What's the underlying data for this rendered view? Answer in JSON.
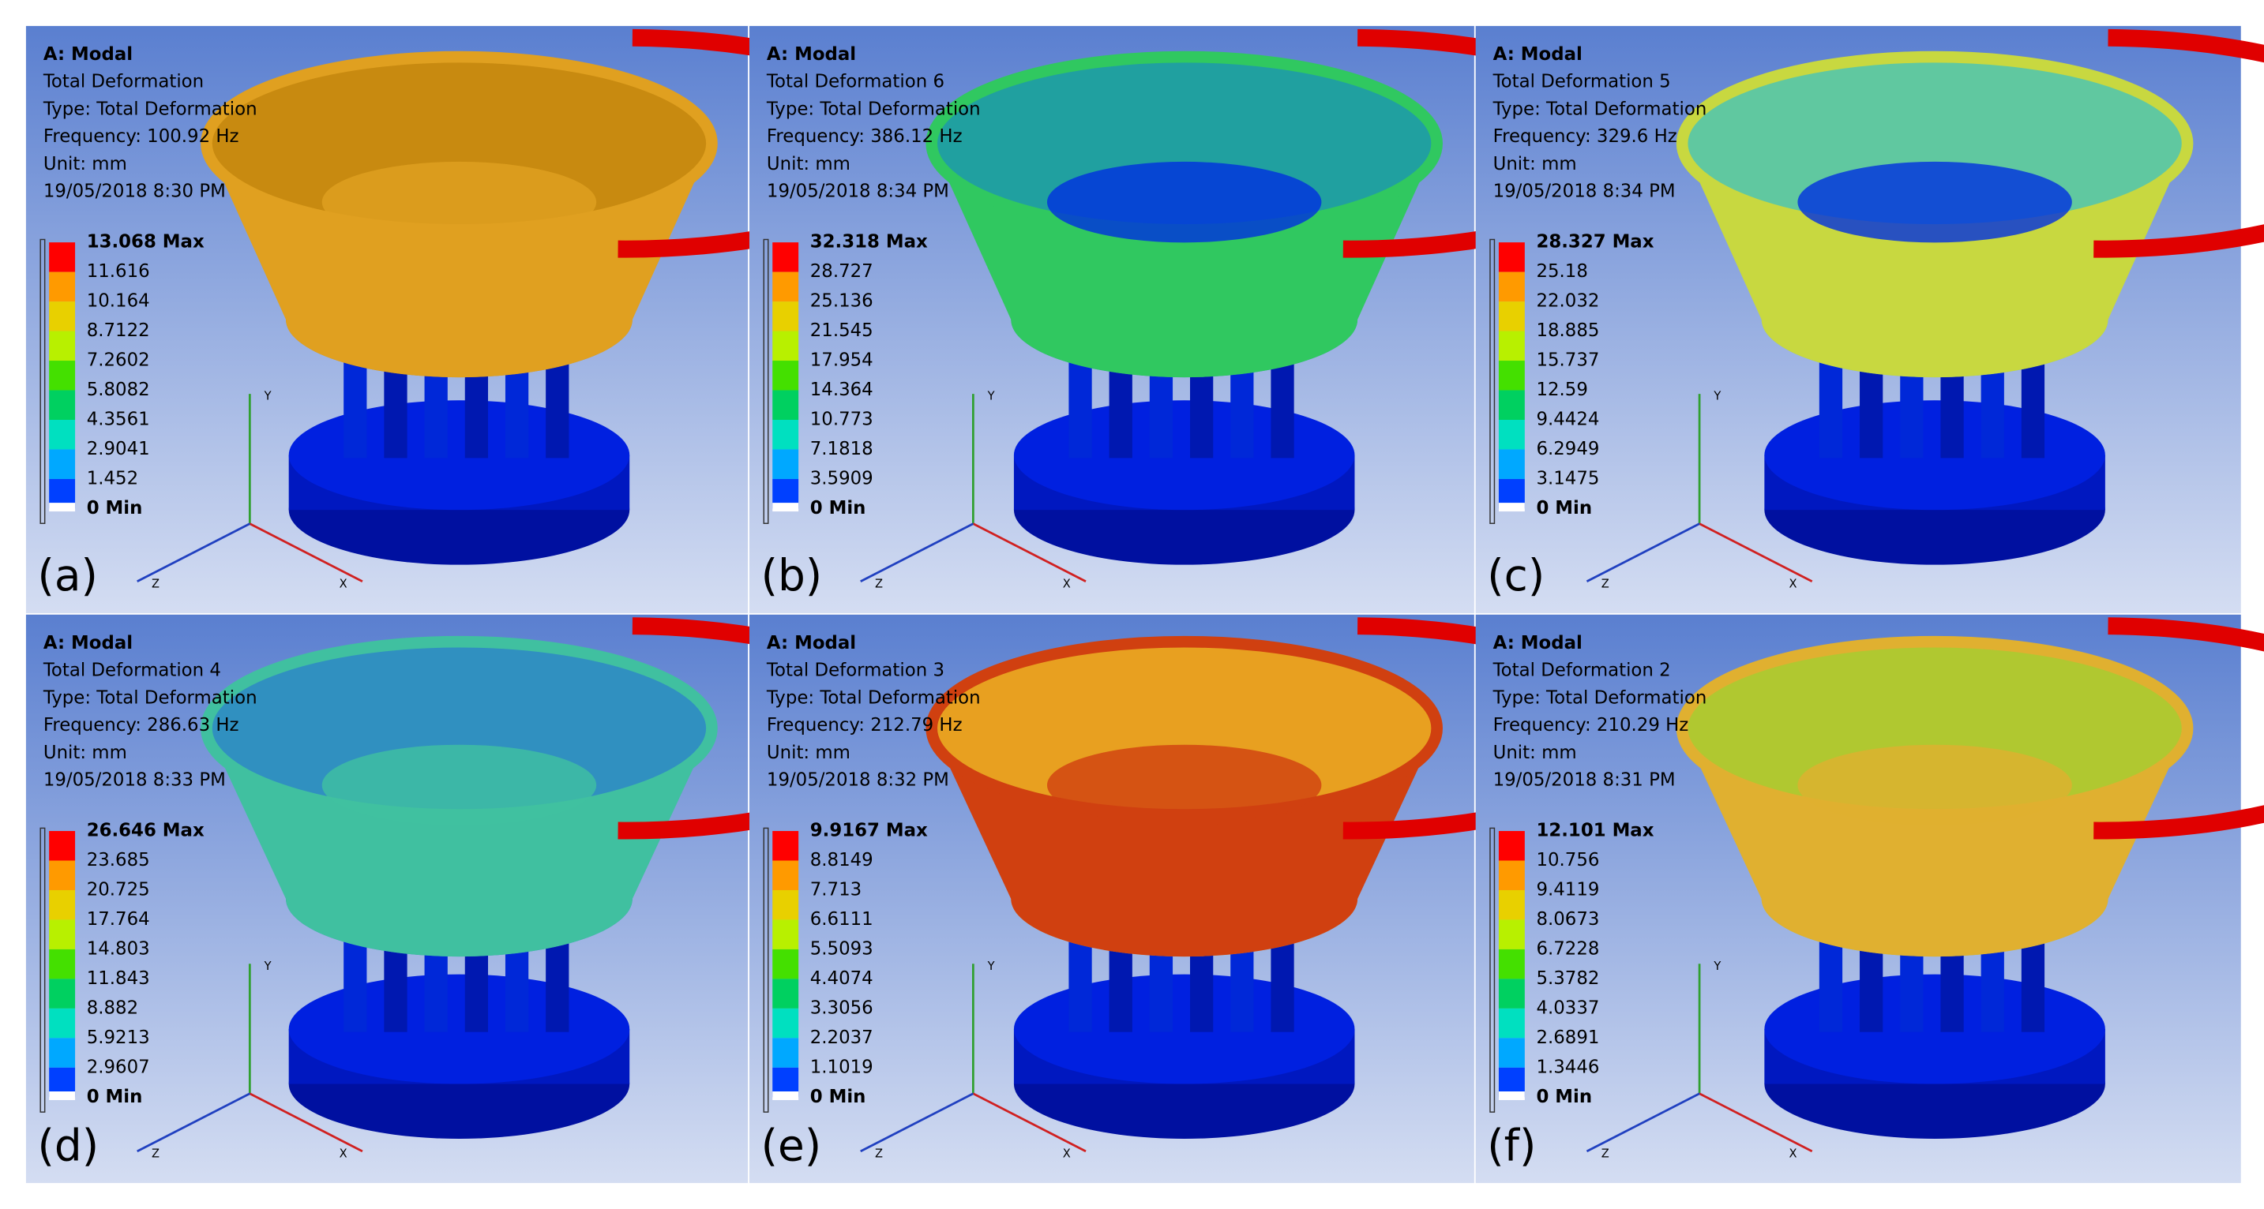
{
  "panels": [
    {
      "label": "(a)",
      "info": [
        "A: Modal",
        "Total Deformation",
        "Type: Total Deformation",
        "Frequency: 100.92 Hz",
        "Unit: mm",
        "19/05/2018 8:30 PM"
      ],
      "legend": [
        "13.068 Max",
        "11.616",
        "10.164",
        "8.7122",
        "7.2602",
        "5.8082",
        "4.3561",
        "2.9041",
        "1.452",
        "0 Min"
      ]
    },
    {
      "label": "(b)",
      "info": [
        "A: Modal",
        "Total Deformation 6",
        "Type: Total Deformation",
        "Frequency: 386.12 Hz",
        "Unit: mm",
        "19/05/2018 8:34 PM"
      ],
      "legend": [
        "32.318 Max",
        "28.727",
        "25.136",
        "21.545",
        "17.954",
        "14.364",
        "10.773",
        "7.1818",
        "3.5909",
        "0 Min"
      ]
    },
    {
      "label": "(c)",
      "info": [
        "A: Modal",
        "Total Deformation 5",
        "Type: Total Deformation",
        "Frequency: 329.6 Hz",
        "Unit: mm",
        "19/05/2018 8:34 PM"
      ],
      "legend": [
        "28.327 Max",
        "25.18",
        "22.032",
        "18.885",
        "15.737",
        "12.59",
        "9.4424",
        "6.2949",
        "3.1475",
        "0 Min"
      ]
    },
    {
      "label": "(d)",
      "info": [
        "A: Modal",
        "Total Deformation 4",
        "Type: Total Deformation",
        "Frequency: 286.63 Hz",
        "Unit: mm",
        "19/05/2018 8:33 PM"
      ],
      "legend": [
        "26.646 Max",
        "23.685",
        "20.725",
        "17.764",
        "14.803",
        "11.843",
        "8.882",
        "5.9213",
        "2.9607",
        "0 Min"
      ]
    },
    {
      "label": "(e)",
      "info": [
        "A: Modal",
        "Total Deformation 3",
        "Type: Total Deformation",
        "Frequency: 212.79 Hz",
        "Unit: mm",
        "19/05/2018 8:32 PM"
      ],
      "legend": [
        "9.9167 Max",
        "8.8149",
        "7.713",
        "6.6111",
        "5.5093",
        "4.4074",
        "3.3056",
        "2.2037",
        "1.1019",
        "0 Min"
      ]
    },
    {
      "label": "(f)",
      "info": [
        "A: Modal",
        "Total Deformation 2",
        "Type: Total Deformation",
        "Frequency: 210.29 Hz",
        "Unit: mm",
        "19/05/2018 8:31 PM"
      ],
      "legend": [
        "12.101 Max",
        "10.756",
        "9.4119",
        "8.0673",
        "6.7228",
        "5.3782",
        "4.0337",
        "2.6891",
        "1.3446",
        "0 Min"
      ]
    }
  ],
  "axes": [
    "Y",
    "X",
    "Z"
  ]
}
